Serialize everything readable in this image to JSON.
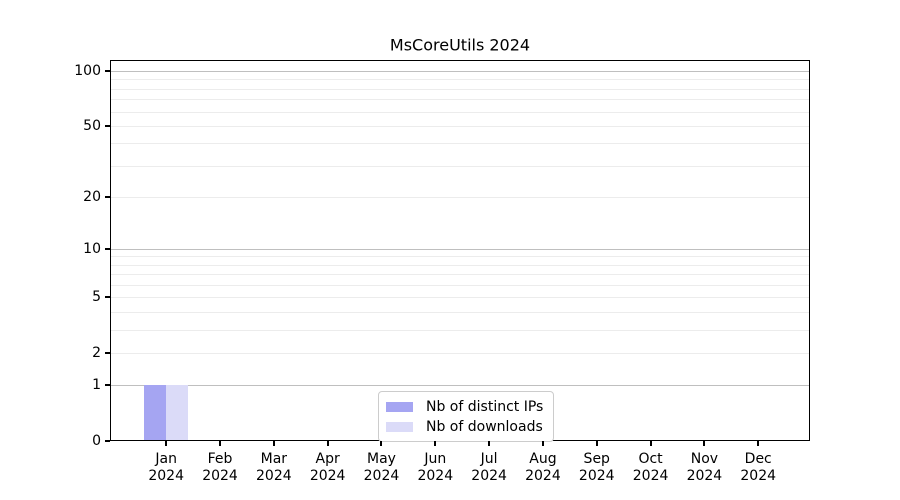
{
  "chart_data": {
    "type": "bar",
    "title": "MsCoreUtils 2024",
    "scale": "log1p",
    "ylim": [
      0,
      115
    ],
    "grid": true,
    "legend_position": "inside-bottom-center",
    "categories": [
      {
        "month": "Jan",
        "year": "2024"
      },
      {
        "month": "Feb",
        "year": "2024"
      },
      {
        "month": "Mar",
        "year": "2024"
      },
      {
        "month": "Apr",
        "year": "2024"
      },
      {
        "month": "May",
        "year": "2024"
      },
      {
        "month": "Jun",
        "year": "2024"
      },
      {
        "month": "Jul",
        "year": "2024"
      },
      {
        "month": "Aug",
        "year": "2024"
      },
      {
        "month": "Sep",
        "year": "2024"
      },
      {
        "month": "Oct",
        "year": "2024"
      },
      {
        "month": "Nov",
        "year": "2024"
      },
      {
        "month": "Dec",
        "year": "2024"
      }
    ],
    "series": [
      {
        "name": "Nb of distinct IPs",
        "color": "#a5a5f2",
        "values": [
          1,
          0,
          0,
          0,
          0,
          0,
          0,
          0,
          0,
          0,
          0,
          0
        ]
      },
      {
        "name": "Nb of downloads",
        "color": "#dbdbf8",
        "values": [
          1,
          0,
          0,
          0,
          0,
          0,
          0,
          0,
          0,
          0,
          0,
          0
        ]
      }
    ],
    "y_axis": {
      "tick_values": [
        0,
        1,
        2,
        5,
        10,
        20,
        50,
        100
      ],
      "tick_labels": [
        "0",
        "1",
        "2",
        "5",
        "10",
        "20",
        "50",
        "100"
      ],
      "minor_grid_values": [
        2,
        3,
        4,
        5,
        6,
        7,
        8,
        9,
        20,
        30,
        40,
        50,
        60,
        70,
        80,
        90
      ],
      "major_grid_values": [
        1,
        10,
        100
      ]
    },
    "colors": {
      "axis": "#000000",
      "grid_minor": "#ececec",
      "grid_major": "#bfbfbf",
      "legend_border": "#cccccc",
      "background": "#ffffff"
    }
  }
}
